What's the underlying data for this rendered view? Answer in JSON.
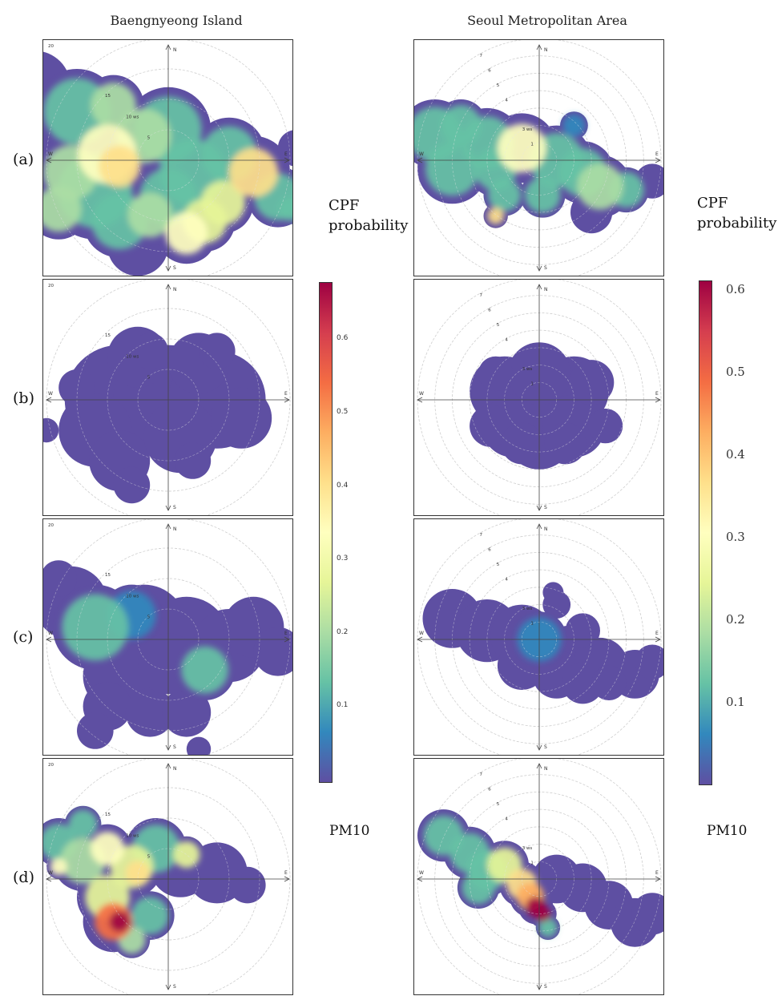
{
  "columns": [
    {
      "title": "Baengnyeong Island"
    },
    {
      "title": "Seoul Metropolitan Area"
    }
  ],
  "row_labels": [
    "(a)",
    "(b)",
    "(c)",
    "(d)"
  ],
  "colorbars": [
    {
      "title_line1": "CPF",
      "title_line2": "probability",
      "footer": "PM10",
      "ticks": [
        "0.6",
        "0.5",
        "0.4",
        "0.3",
        "0.2",
        "0.1"
      ],
      "tick_values": [
        0.6,
        0.5,
        0.4,
        0.3,
        0.2,
        0.1
      ],
      "vmax": 0.68
    },
    {
      "title_line1": "CPF",
      "title_line2": "probability",
      "footer": "PM10",
      "ticks": [
        "0.6",
        "0.5",
        "0.4",
        "0.3",
        "0.2",
        "0.1"
      ],
      "tick_values": [
        0.6,
        0.5,
        0.4,
        0.3,
        0.2,
        0.1
      ],
      "vmax": 0.61
    }
  ],
  "colormap": [
    "#5e4fa2",
    "#3288bd",
    "#66c2a5",
    "#abdda4",
    "#e6f598",
    "#ffffbf",
    "#fee08b",
    "#fdae61",
    "#f46d43",
    "#d53e4f",
    "#9e0142"
  ],
  "chart_data": [
    {
      "type": "polar-heatmap",
      "site": "Baengnyeong Island",
      "row": "(a)",
      "rmax": 20,
      "ring_labels": [
        "20",
        "15",
        "10 ws",
        "5"
      ],
      "direction_labels": [
        "N",
        "E",
        "S",
        "W"
      ],
      "blobs": [
        [
          -22,
          12,
          6,
          0
        ],
        [
          -20,
          3,
          7,
          0
        ],
        [
          -15,
          8,
          7,
          0.05
        ],
        [
          -12,
          -5,
          8,
          0.1
        ],
        [
          -8,
          -10,
          6,
          0.08
        ],
        [
          -5,
          -14,
          5,
          0
        ],
        [
          -16,
          -2,
          6,
          0.15
        ],
        [
          -10,
          1,
          7,
          0.3
        ],
        [
          -8,
          -1,
          5,
          0.32
        ],
        [
          -4,
          4,
          6,
          0.15
        ],
        [
          0,
          5,
          7,
          0.05
        ],
        [
          4,
          -2,
          7,
          0.05
        ],
        [
          0,
          -6,
          6,
          0.05
        ],
        [
          6,
          -10,
          5,
          0.2
        ],
        [
          3,
          -12,
          5,
          0.3
        ],
        [
          10,
          1,
          6,
          0.1
        ],
        [
          14,
          -2,
          6,
          0.35
        ],
        [
          18,
          -6,
          5,
          0.08
        ],
        [
          21,
          2,
          3,
          0.0
        ],
        [
          20,
          -8,
          2.5,
          0.05
        ],
        [
          -18,
          -8,
          5,
          0.15
        ],
        [
          -3,
          -9,
          5,
          0.18
        ],
        [
          9,
          -7,
          5,
          0.2
        ],
        [
          -9,
          9,
          5,
          0.15
        ]
      ]
    },
    {
      "type": "polar-heatmap",
      "site": "Seoul Metropolitan Area",
      "row": "(a)",
      "rmax": 7,
      "ring_labels": [
        "7",
        "6",
        "5",
        "4",
        "3 ws",
        "1"
      ],
      "direction_labels": [
        "N",
        "E",
        "S",
        "W"
      ],
      "blobs": [
        [
          -6,
          1.5,
          2,
          0.05
        ],
        [
          -5,
          -0.5,
          2,
          0.08
        ],
        [
          -3,
          1,
          2,
          0.1
        ],
        [
          -1,
          0.7,
          2,
          0.25
        ],
        [
          -2.5,
          -0.5,
          1.6,
          0.1
        ],
        [
          1,
          0,
          2,
          0.05
        ],
        [
          2.5,
          -0.7,
          1.8,
          0.08
        ],
        [
          3.5,
          -1.5,
          1.8,
          0.15
        ],
        [
          5,
          -1.7,
          1.3,
          0.05
        ],
        [
          6.5,
          -1.2,
          1.0,
          0.0
        ],
        [
          -2,
          -2,
          1.2,
          0.05
        ],
        [
          -2.5,
          -3.2,
          0.7,
          0.3
        ],
        [
          0.2,
          -2,
          1.3,
          0.05
        ],
        [
          2,
          2,
          0.8,
          0.02
        ],
        [
          -4.5,
          2,
          1.5,
          0.05
        ],
        [
          3,
          -3,
          1.2,
          0.0
        ]
      ]
    },
    {
      "type": "polar-heatmap",
      "site": "Baengnyeong Island",
      "row": "(b)",
      "rmax": 20,
      "ring_labels": [
        "20",
        "15",
        "10 ws",
        "5"
      ],
      "direction_labels": [
        "N",
        "E",
        "S",
        "W"
      ],
      "blobs": [
        [
          -8,
          0,
          9,
          0
        ],
        [
          0,
          0,
          9,
          0
        ],
        [
          8,
          0,
          8,
          0
        ],
        [
          -5,
          7,
          5,
          0
        ],
        [
          5,
          6,
          5,
          0
        ],
        [
          -12,
          -5,
          6,
          0
        ],
        [
          -8,
          -10,
          5,
          0
        ],
        [
          -6,
          -14,
          3,
          0
        ],
        [
          2,
          -6,
          6,
          0
        ],
        [
          12,
          -3,
          5,
          0
        ],
        [
          -15,
          2,
          3,
          0
        ],
        [
          -20,
          -5,
          2,
          0
        ],
        [
          8,
          8,
          3,
          0
        ],
        [
          4,
          -10,
          3,
          0
        ],
        [
          -3,
          8,
          3,
          0
        ]
      ]
    },
    {
      "type": "polar-heatmap",
      "site": "Seoul Metropolitan Area",
      "row": "(b)",
      "rmax": 7,
      "ring_labels": [
        "7",
        "6",
        "5",
        "4",
        "3 ws",
        "1"
      ],
      "direction_labels": [
        "N",
        "E",
        "S",
        "W"
      ],
      "blobs": [
        [
          0,
          0,
          2.8,
          0
        ],
        [
          -2,
          0.5,
          2,
          0
        ],
        [
          2,
          0.5,
          2,
          0
        ],
        [
          0,
          -2,
          2,
          0
        ],
        [
          -1.5,
          -1.5,
          1.8,
          0
        ],
        [
          2,
          -1.5,
          1.8,
          0
        ],
        [
          0,
          1.5,
          1.8,
          0
        ],
        [
          -2.8,
          -1.5,
          1.2,
          0
        ],
        [
          3,
          1,
          1.3,
          0
        ],
        [
          3.8,
          -1.5,
          1.0,
          0
        ],
        [
          -1,
          -2.5,
          1.2,
          0
        ],
        [
          1.5,
          -2.5,
          1.2,
          0
        ],
        [
          -2.5,
          1.5,
          1.0,
          0
        ]
      ]
    },
    {
      "type": "polar-heatmap",
      "site": "Baengnyeong Island",
      "row": "(c)",
      "rmax": 20,
      "ring_labels": [
        "20",
        "15",
        "10 ws",
        "5"
      ],
      "direction_labels": [
        "N",
        "E",
        "S",
        "W"
      ],
      "blobs": [
        [
          -16,
          6,
          6,
          0
        ],
        [
          -12,
          2,
          7,
          0.06
        ],
        [
          -4,
          2,
          7,
          0
        ],
        [
          3,
          0,
          7,
          0
        ],
        [
          10,
          -1,
          6,
          0
        ],
        [
          6,
          -5,
          5,
          0.08
        ],
        [
          14,
          2,
          5,
          0
        ],
        [
          18,
          -2,
          4,
          0
        ],
        [
          -8,
          -6,
          6,
          0
        ],
        [
          -10,
          -11,
          4,
          0
        ],
        [
          -12,
          -15,
          3,
          0
        ],
        [
          -3,
          -12,
          4,
          0
        ],
        [
          3,
          -12,
          4,
          0
        ],
        [
          5,
          -18,
          2,
          0
        ],
        [
          -18,
          10,
          3,
          0
        ],
        [
          0,
          -4,
          5,
          0
        ],
        [
          -6,
          4,
          5,
          0.02
        ]
      ]
    },
    {
      "type": "polar-heatmap",
      "site": "Seoul Metropolitan Area",
      "row": "(c)",
      "rmax": 7,
      "ring_labels": [
        "7",
        "6",
        "5",
        "4",
        "3 ws",
        "1"
      ],
      "direction_labels": [
        "N",
        "E",
        "S",
        "W"
      ],
      "blobs": [
        [
          -5,
          1.2,
          1.7,
          0
        ],
        [
          -3,
          0.5,
          1.8,
          0
        ],
        [
          -1,
          0.2,
          1.8,
          0
        ],
        [
          0,
          0,
          1.6,
          0.02
        ],
        [
          1.8,
          -1,
          1.8,
          0
        ],
        [
          3.5,
          -1.5,
          1.6,
          0
        ],
        [
          5.5,
          -2,
          1.4,
          0
        ],
        [
          6.5,
          -1.3,
          1,
          0
        ],
        [
          -1,
          -1.5,
          1.4,
          0
        ],
        [
          1,
          -2,
          1.4,
          0
        ],
        [
          2.5,
          -2.5,
          1.2,
          0
        ],
        [
          4,
          -2.5,
          1,
          0
        ],
        [
          1,
          2,
          0.8,
          0
        ],
        [
          0.8,
          2.7,
          0.6,
          0
        ],
        [
          2.5,
          0.5,
          1,
          0
        ]
      ]
    },
    {
      "type": "polar-heatmap",
      "site": "Baengnyeong Island",
      "row": "(d)",
      "rmax": 20,
      "ring_labels": [
        "20",
        "15",
        "10 ws",
        "5"
      ],
      "direction_labels": [
        "N",
        "E",
        "S",
        "W"
      ],
      "blobs": [
        [
          -18,
          6,
          4,
          0.1
        ],
        [
          -14,
          3,
          5,
          0.15
        ],
        [
          -10,
          5,
          4,
          0.3
        ],
        [
          -6,
          2,
          5,
          0.25
        ],
        [
          -5,
          1,
          3,
          0.35
        ],
        [
          -2,
          5,
          5,
          0.05
        ],
        [
          2,
          2,
          5,
          0
        ],
        [
          8,
          1,
          5,
          0
        ],
        [
          13,
          -1,
          3,
          0
        ],
        [
          -10,
          -3,
          5,
          0.2
        ],
        [
          -9,
          -7,
          5,
          0.5
        ],
        [
          -8,
          -7,
          3,
          0.62
        ],
        [
          -6,
          -10,
          3,
          0.15
        ],
        [
          -3,
          -6,
          4,
          0.1
        ],
        [
          -18,
          2,
          2,
          0.3
        ],
        [
          3,
          4,
          3,
          0.2
        ],
        [
          -14,
          9,
          3,
          0.05
        ]
      ]
    },
    {
      "type": "polar-heatmap",
      "site": "Seoul Metropolitan Area",
      "row": "(d)",
      "rmax": 7,
      "ring_labels": [
        "7",
        "6",
        "5",
        "4",
        "3 ws",
        "1"
      ],
      "direction_labels": [
        "N",
        "E",
        "S",
        "W"
      ],
      "blobs": [
        [
          -5.5,
          2.5,
          1.5,
          0.1
        ],
        [
          -4,
          1.5,
          1.5,
          0.1
        ],
        [
          -3,
          0.5,
          1.5,
          0.05
        ],
        [
          -2,
          0.8,
          1.4,
          0.2
        ],
        [
          -1,
          -0.3,
          1.3,
          0.3
        ],
        [
          -0.5,
          -1,
          1.2,
          0.35
        ],
        [
          -0.2,
          -1.6,
          1.0,
          0.55
        ],
        [
          0.2,
          -2,
          0.8,
          0.58
        ],
        [
          1,
          0,
          1.4,
          0
        ],
        [
          2.5,
          -0.5,
          1.4,
          0
        ],
        [
          4,
          -1.5,
          1.4,
          0
        ],
        [
          5.5,
          -2.5,
          1.4,
          0
        ],
        [
          6.5,
          -2,
          1.2,
          0
        ],
        [
          0.5,
          -2.8,
          0.7,
          0.1
        ],
        [
          -3.5,
          -0.5,
          1.2,
          0.05
        ]
      ]
    }
  ]
}
